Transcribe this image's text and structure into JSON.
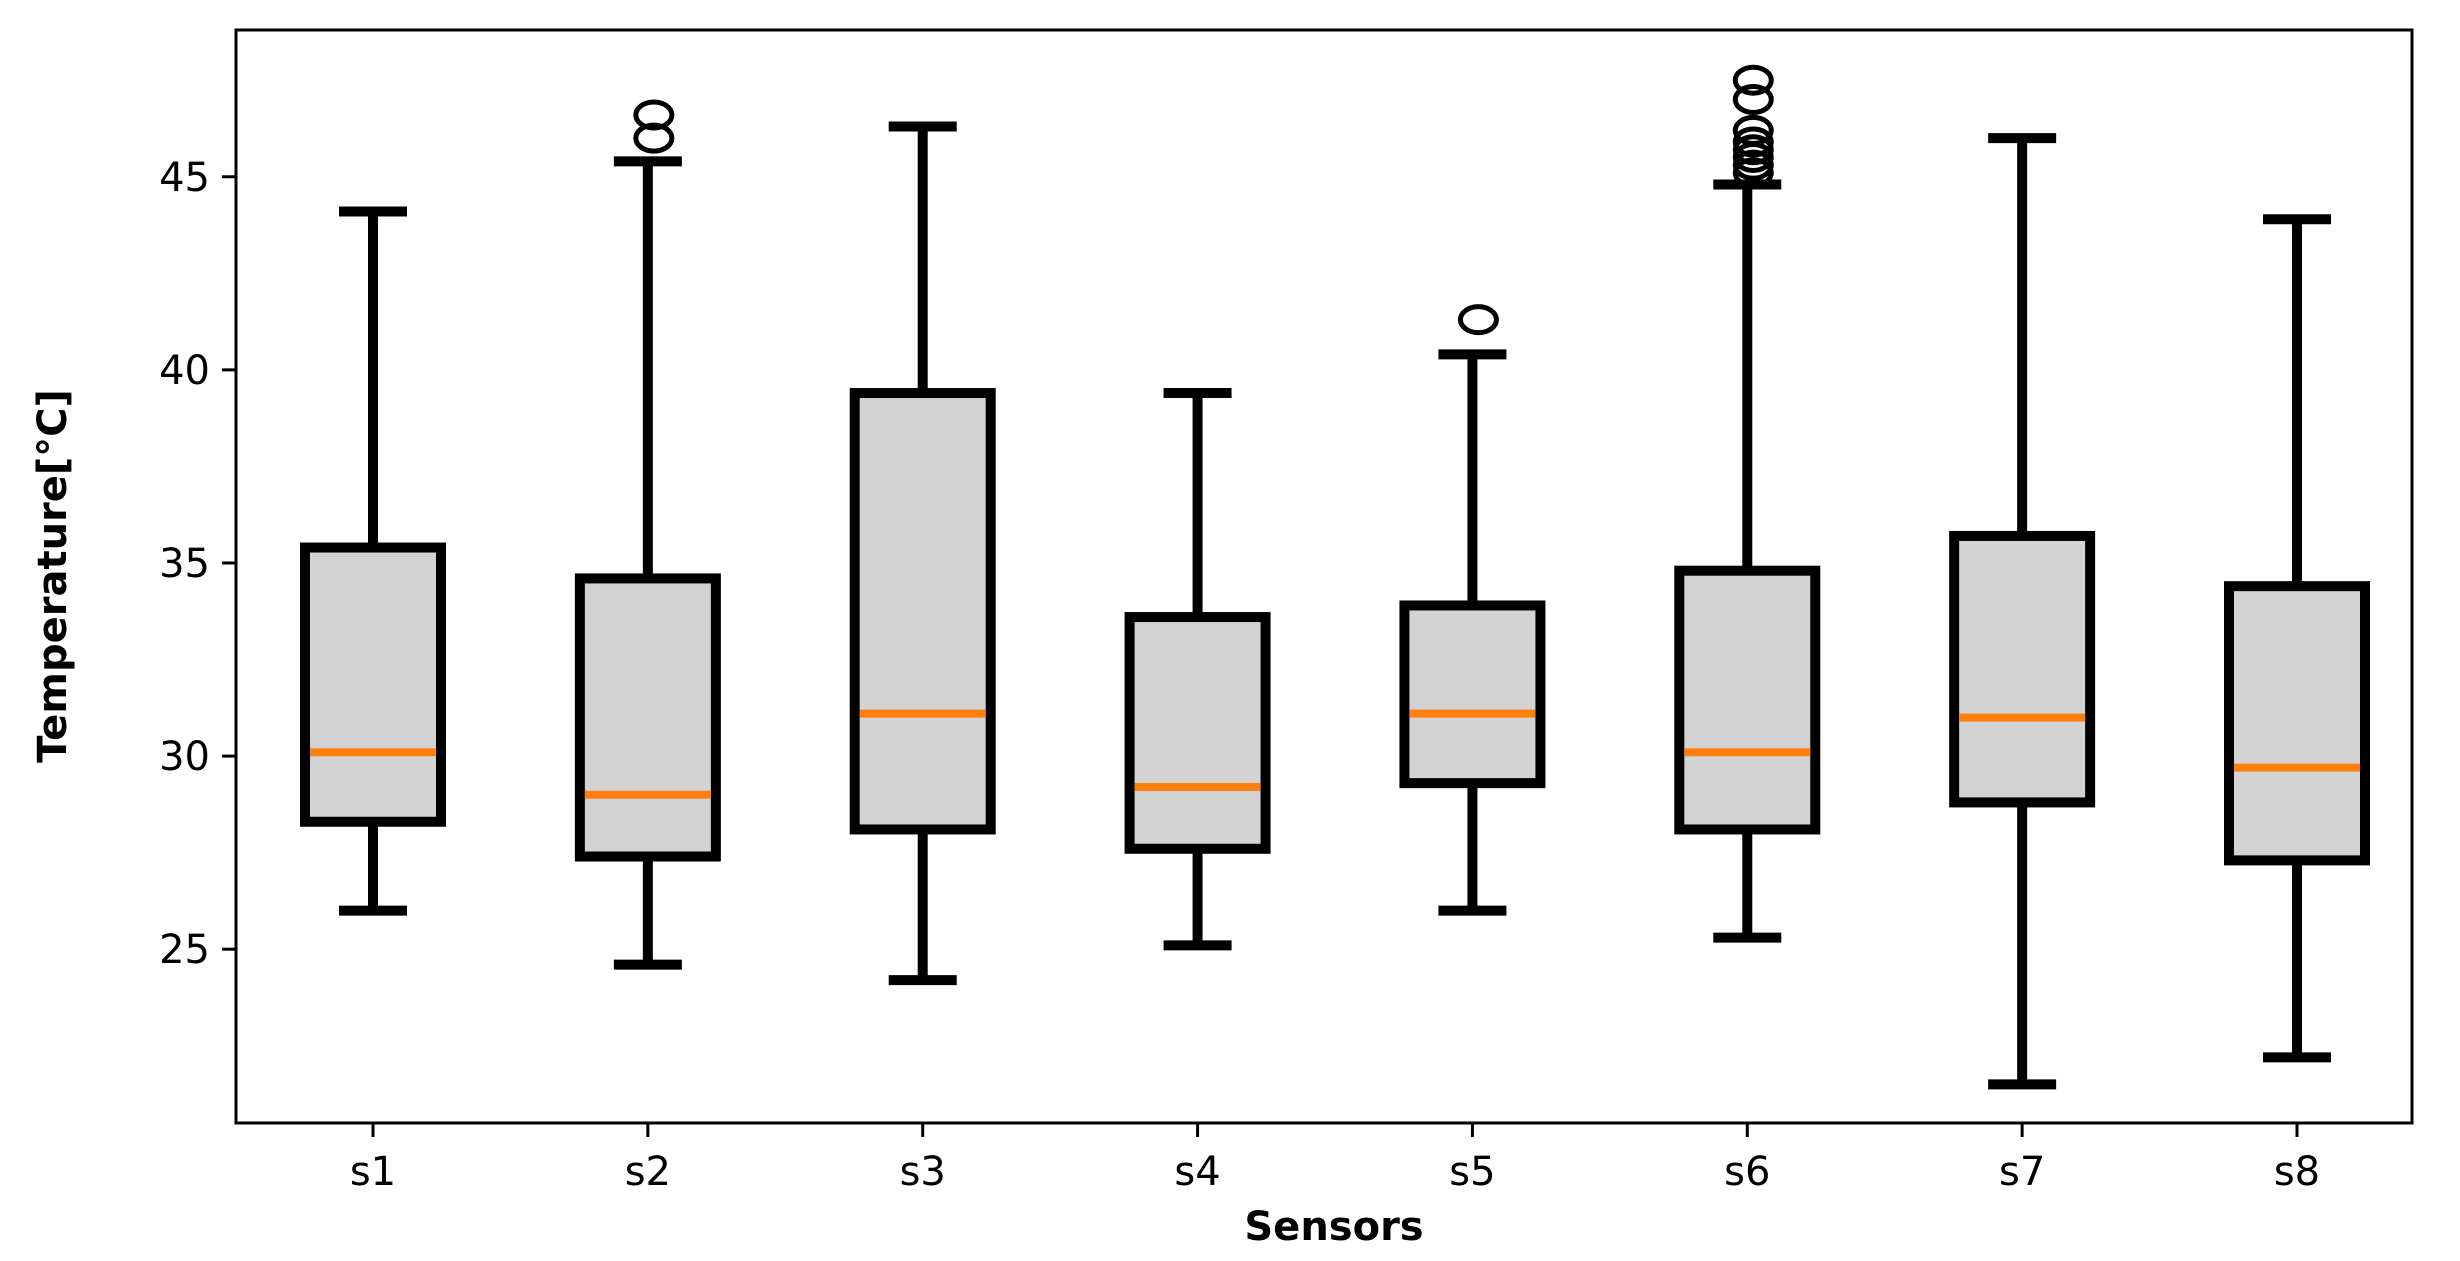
{
  "chart_data": {
    "type": "boxplot",
    "title": "",
    "xlabel": "Sensors",
    "ylabel": "Temperature[°C]",
    "ylim": [
      20.5,
      48.8
    ],
    "yticks": [
      25,
      30,
      35,
      40,
      45
    ],
    "categories": [
      "s1",
      "s2",
      "s3",
      "s4",
      "s5",
      "s6",
      "s7",
      "s8"
    ],
    "boxes": [
      {
        "name": "s1",
        "whisker_low": 26.0,
        "q1": 28.3,
        "median": 30.1,
        "q3": 35.4,
        "whisker_high": 44.1,
        "fliers": []
      },
      {
        "name": "s2",
        "whisker_low": 24.6,
        "q1": 27.4,
        "median": 29.0,
        "q3": 34.6,
        "whisker_high": 45.4,
        "fliers": [
          46.0,
          46.6
        ]
      },
      {
        "name": "s3",
        "whisker_low": 24.2,
        "q1": 28.1,
        "median": 31.1,
        "q3": 39.4,
        "whisker_high": 46.3,
        "fliers": []
      },
      {
        "name": "s4",
        "whisker_low": 25.1,
        "q1": 27.6,
        "median": 29.2,
        "q3": 33.6,
        "whisker_high": 39.4,
        "fliers": []
      },
      {
        "name": "s5",
        "whisker_low": 26.0,
        "q1": 29.3,
        "median": 31.1,
        "q3": 33.9,
        "whisker_high": 40.4,
        "fliers": [
          41.3
        ]
      },
      {
        "name": "s6",
        "whisker_low": 25.3,
        "q1": 28.1,
        "median": 30.1,
        "q3": 34.8,
        "whisker_high": 44.8,
        "fliers": [
          45.1,
          45.3,
          45.5,
          45.7,
          45.9,
          46.2,
          47.0,
          47.5
        ]
      },
      {
        "name": "s7",
        "whisker_low": 21.5,
        "q1": 28.8,
        "median": 31.0,
        "q3": 35.7,
        "whisker_high": 46.0,
        "fliers": []
      },
      {
        "name": "s8",
        "whisker_low": 22.2,
        "q1": 27.3,
        "median": 29.7,
        "q3": 34.4,
        "whisker_high": 43.9,
        "fliers": []
      }
    ],
    "colors": {
      "box_fill": "#d3d3d3",
      "box_edge": "#000000",
      "median": "#ff7f0e",
      "whisker": "#000000"
    },
    "grid": false,
    "legend": "none"
  }
}
